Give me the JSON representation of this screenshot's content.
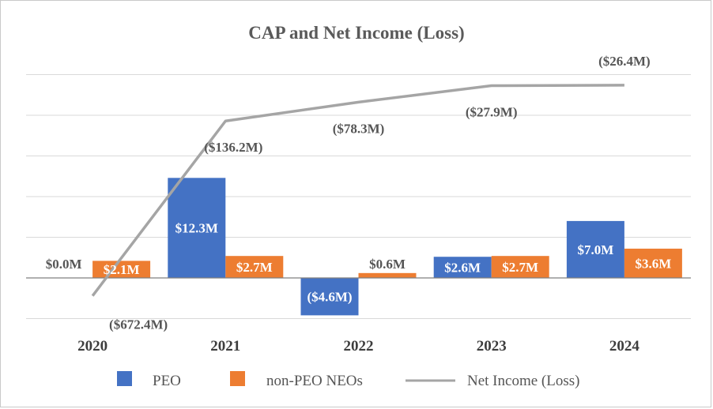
{
  "chart_data": {
    "type": "bar",
    "title": "CAP and Net Income (Loss)",
    "categories": [
      "2020",
      "2021",
      "2022",
      "2023",
      "2024"
    ],
    "series": [
      {
        "name": "PEO",
        "type": "bar",
        "color": "#4472c4",
        "values": [
          0.0,
          12.3,
          -4.6,
          2.6,
          7.0
        ],
        "labels": [
          "$0.0M",
          "$12.3M",
          "($4.6M)",
          "$2.6M",
          "$7.0M"
        ]
      },
      {
        "name": "non-PEO NEOs",
        "type": "bar",
        "color": "#ed7d31",
        "values": [
          2.1,
          2.7,
          0.6,
          2.7,
          3.6
        ],
        "labels": [
          "$2.1M",
          "$2.7M",
          "$0.6M",
          "$2.7M",
          "$3.6M"
        ]
      },
      {
        "name": "Net Income (Loss)",
        "type": "line",
        "axis": "secondary",
        "color": "#a5a5a5",
        "values": [
          -672.4,
          -136.2,
          -78.3,
          -27.9,
          -26.4
        ],
        "labels": [
          "($672.4M)",
          "($136.2M)",
          "($78.3M)",
          "($27.9M)",
          "($26.4M)"
        ]
      }
    ],
    "ylim": [
      -5,
      25
    ],
    "y2lim": [
      -770,
      0
    ],
    "grid": true,
    "legend_position": "bottom"
  }
}
